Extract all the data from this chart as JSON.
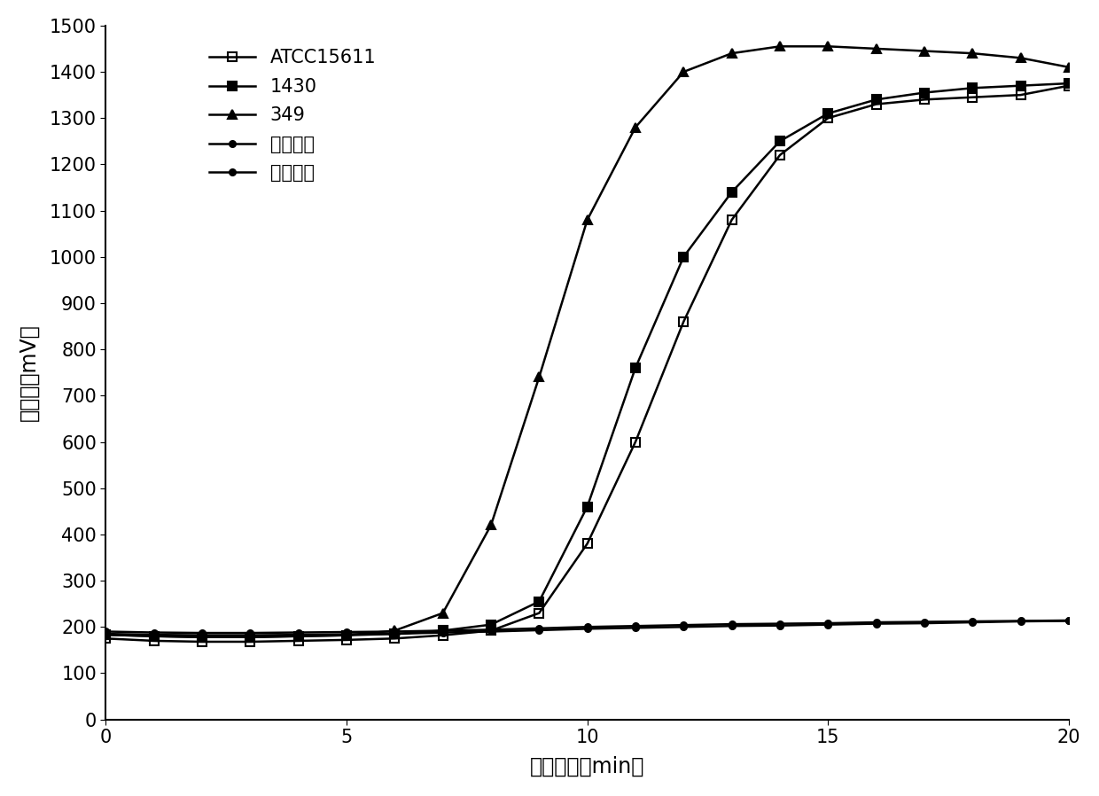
{
  "series": [
    {
      "label": "ATCC15611",
      "marker": "s",
      "fillstyle": "none",
      "color": "#000000",
      "linewidth": 1.8,
      "markersize": 7,
      "x": [
        0,
        1,
        2,
        3,
        4,
        5,
        6,
        7,
        8,
        9,
        10,
        11,
        12,
        13,
        14,
        15,
        16,
        17,
        18,
        19,
        20
      ],
      "y": [
        175,
        170,
        168,
        168,
        170,
        172,
        175,
        182,
        192,
        230,
        380,
        600,
        860,
        1080,
        1220,
        1300,
        1330,
        1340,
        1345,
        1350,
        1370
      ]
    },
    {
      "label": "1430",
      "marker": "s",
      "fillstyle": "full",
      "color": "#000000",
      "linewidth": 1.8,
      "markersize": 7,
      "x": [
        0,
        1,
        2,
        3,
        4,
        5,
        6,
        7,
        8,
        9,
        10,
        11,
        12,
        13,
        14,
        15,
        16,
        17,
        18,
        19,
        20
      ],
      "y": [
        183,
        180,
        178,
        178,
        180,
        182,
        185,
        192,
        205,
        255,
        460,
        760,
        1000,
        1140,
        1250,
        1310,
        1340,
        1355,
        1365,
        1370,
        1375
      ]
    },
    {
      "label": "349",
      "marker": "^",
      "fillstyle": "full",
      "color": "#000000",
      "linewidth": 1.8,
      "markersize": 7,
      "x": [
        0,
        1,
        2,
        3,
        4,
        5,
        6,
        7,
        8,
        9,
        10,
        11,
        12,
        13,
        14,
        15,
        16,
        17,
        18,
        19,
        20
      ],
      "y": [
        183,
        180,
        178,
        178,
        180,
        182,
        192,
        230,
        420,
        740,
        1080,
        1280,
        1400,
        1440,
        1455,
        1455,
        1450,
        1445,
        1440,
        1430,
        1410
      ]
    },
    {
      "label": "大肠杆菌",
      "marker": "o",
      "fillstyle": "full",
      "color": "#000000",
      "linewidth": 1.8,
      "markersize": 5,
      "x": [
        0,
        1,
        2,
        3,
        4,
        5,
        6,
        7,
        8,
        9,
        10,
        11,
        12,
        13,
        14,
        15,
        16,
        17,
        18,
        19,
        20
      ],
      "y": [
        185,
        183,
        182,
        182,
        183,
        184,
        185,
        188,
        190,
        193,
        196,
        198,
        200,
        202,
        203,
        205,
        207,
        208,
        210,
        212,
        213
      ]
    },
    {
      "label": "志贺氏菌",
      "marker": "o",
      "fillstyle": "full",
      "color": "#000000",
      "linewidth": 1.8,
      "markersize": 5,
      "x": [
        0,
        1,
        2,
        3,
        4,
        5,
        6,
        7,
        8,
        9,
        10,
        11,
        12,
        13,
        14,
        15,
        16,
        17,
        18,
        19,
        20
      ],
      "y": [
        190,
        188,
        187,
        187,
        188,
        189,
        190,
        192,
        194,
        197,
        200,
        202,
        204,
        206,
        207,
        208,
        210,
        211,
        212,
        213,
        214
      ]
    }
  ],
  "xlabel": "反应时间（min）",
  "ylabel": "荧光値（mV）",
  "xlim": [
    0,
    20
  ],
  "ylim": [
    0,
    1500
  ],
  "yticks": [
    0,
    100,
    200,
    300,
    400,
    500,
    600,
    700,
    800,
    900,
    1000,
    1100,
    1200,
    1300,
    1400,
    1500
  ],
  "xticks": [
    0,
    5,
    10,
    15,
    20
  ],
  "background_color": "#ffffff",
  "font_size_label": 17,
  "font_size_tick": 15,
  "font_size_legend": 15
}
